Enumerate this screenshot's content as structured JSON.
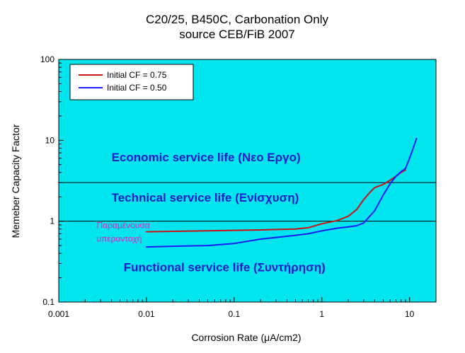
{
  "chart_data": {
    "type": "line",
    "title_line1": "C20/25, B450C, Carbonation Only",
    "title_line2": "source CEB/FiB 2007",
    "xlabel": "Corrosion Rate (μA/cm2)",
    "ylabel": "Memeber Capacity Factor",
    "xscale": "log",
    "yscale": "log",
    "xlim": [
      0.001,
      20
    ],
    "ylim": [
      0.1,
      100
    ],
    "x_ticks": [
      0.001,
      0.01,
      0.1,
      1,
      10
    ],
    "x_tick_labels": [
      "0.001",
      "0.01",
      "0.1",
      "1",
      "10"
    ],
    "y_ticks": [
      0.1,
      1,
      10,
      100
    ],
    "y_tick_labels": [
      "0.1",
      "1",
      "10",
      "100"
    ],
    "plot_background": "#00e5ee",
    "legend_position": "top-left",
    "threshold_lines": [
      3,
      1
    ],
    "zones": [
      {
        "label": "Economic service life (Νεο Εργο)",
        "x": 0.004,
        "y": 5.5
      },
      {
        "label": "Technical service life (Ενίσχυση)",
        "x": 0.004,
        "y": 1.75
      },
      {
        "label": "Functional service life (Συντήρηση)",
        "x": 0.0055,
        "y": 0.24
      }
    ],
    "notes": [
      {
        "lines": [
          "Παραμένουσα",
          "υπεραντοχή"
        ],
        "x": 0.0027,
        "y": 0.82
      }
    ],
    "series": [
      {
        "name": "Initial CF = 0.75",
        "color": "#cc1111",
        "x": [
          0.01,
          0.02,
          0.05,
          0.1,
          0.2,
          0.5,
          0.7,
          1.0,
          1.5,
          2.0,
          2.5,
          3.0,
          3.5,
          4.0,
          5.0,
          6.0,
          7.0,
          8.0,
          9.0
        ],
        "y": [
          0.74,
          0.75,
          0.76,
          0.77,
          0.78,
          0.8,
          0.83,
          0.93,
          1.02,
          1.15,
          1.4,
          1.85,
          2.25,
          2.6,
          2.85,
          3.2,
          3.6,
          4.0,
          4.3
        ]
      },
      {
        "name": "Initial CF = 0.50",
        "color": "#1a1aff",
        "x": [
          0.01,
          0.02,
          0.05,
          0.1,
          0.2,
          0.3,
          0.5,
          0.7,
          1.0,
          1.5,
          2.0,
          2.5,
          3.0,
          4.0,
          5.0,
          6.0,
          7.0,
          8.0,
          9.0,
          10.0,
          11.0,
          12.0
        ],
        "y": [
          0.48,
          0.49,
          0.5,
          0.53,
          0.6,
          0.63,
          0.67,
          0.7,
          0.76,
          0.82,
          0.85,
          0.88,
          0.95,
          1.35,
          2.1,
          2.9,
          3.6,
          4.1,
          4.5,
          6.0,
          8.0,
          10.5
        ]
      }
    ]
  }
}
